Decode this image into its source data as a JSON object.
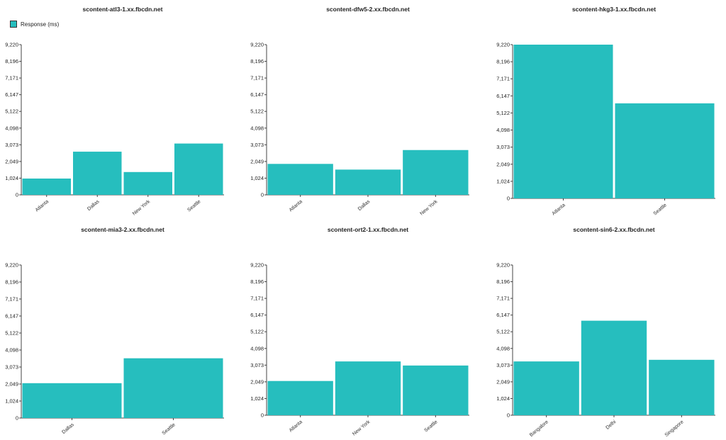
{
  "legend": {
    "label": "Response (ms)",
    "color": "#26BEBE"
  },
  "chart_data": [
    {
      "type": "bar",
      "title": "scontent-atl3-1.xx.fbcdn.net",
      "categories": [
        "Atlanta",
        "Dallas",
        "New York",
        "Seattle"
      ],
      "values": [
        1000,
        2650,
        1400,
        3150
      ],
      "yticks": [
        "0",
        "1,024",
        "2,049",
        "3,073",
        "4,098",
        "5,122",
        "6,147",
        "7,171",
        "8,196",
        "9,220"
      ],
      "ylim": [
        0,
        9220
      ]
    },
    {
      "type": "bar",
      "title": "scontent-dfw5-2.xx.fbcdn.net",
      "categories": [
        "Atlanta",
        "Dallas",
        "New York"
      ],
      "values": [
        1900,
        1550,
        2750
      ],
      "yticks": [
        "0",
        "1,024",
        "2,049",
        "3,073",
        "4,098",
        "5,122",
        "6,147",
        "7,171",
        "8,196",
        "9,220"
      ],
      "ylim": [
        0,
        9220
      ]
    },
    {
      "type": "bar",
      "title": "scontent-hkg3-1.xx.fbcdn.net",
      "categories": [
        "Atlanta",
        "Seattle"
      ],
      "values": [
        9220,
        5700
      ],
      "yticks": [
        "0",
        "1,024",
        "2,049",
        "3,073",
        "4,098",
        "5,122",
        "6,147",
        "7,171",
        "8,196",
        "9,220"
      ],
      "ylim": [
        0,
        9220
      ]
    },
    {
      "type": "bar",
      "title": "scontent-mia3-2.xx.fbcdn.net",
      "categories": [
        "Dallas",
        "Seattle"
      ],
      "values": [
        2100,
        3600
      ],
      "yticks": [
        "0",
        "1,024",
        "2,049",
        "3,073",
        "4,098",
        "5,122",
        "6,147",
        "7,171",
        "8,196",
        "9,220"
      ],
      "ylim": [
        0,
        9220
      ]
    },
    {
      "type": "bar",
      "title": "scontent-ort2-1.xx.fbcdn.net",
      "categories": [
        "Atlanta",
        "New York",
        "Seattle"
      ],
      "values": [
        2100,
        3300,
        3050
      ],
      "yticks": [
        "0",
        "1,024",
        "2,049",
        "3,073",
        "4,098",
        "5,122",
        "6,147",
        "7,171",
        "8,196",
        "9,220"
      ],
      "ylim": [
        0,
        9220
      ]
    },
    {
      "type": "bar",
      "title": "scontent-sin6-2.xx.fbcdn.net",
      "categories": [
        "Bangalore",
        "Delhi",
        "Singapore"
      ],
      "values": [
        3300,
        5800,
        3400
      ],
      "yticks": [
        "0",
        "1,024",
        "2,049",
        "3,073",
        "4,098",
        "5,122",
        "6,147",
        "7,171",
        "8,196",
        "9,220"
      ],
      "ylim": [
        0,
        9220
      ]
    }
  ]
}
